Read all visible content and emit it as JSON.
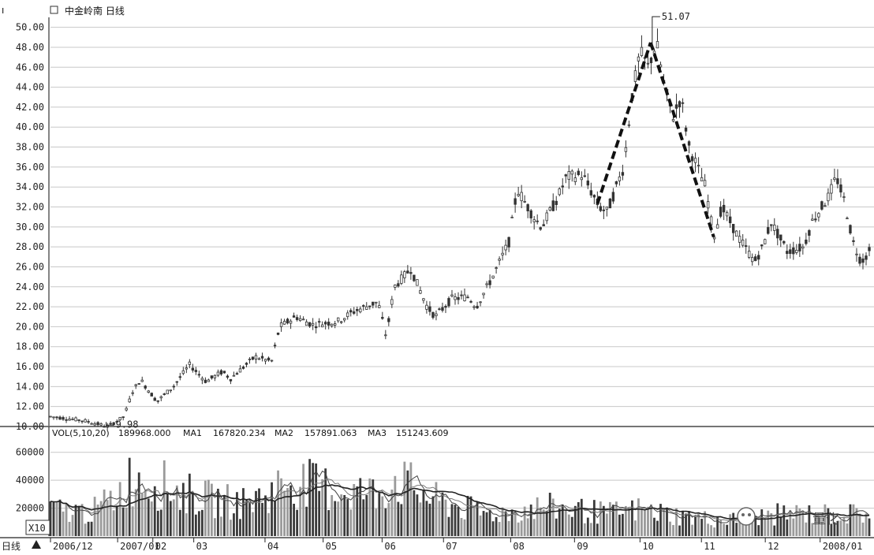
{
  "header": {
    "title": "中金岭南 日线",
    "indicator": "VOL(5,10,20)",
    "vol_value": "189968.000",
    "ma1_label": "MA1",
    "ma1_value": "167820.234",
    "ma2_label": "MA2",
    "ma2_value": "157891.063",
    "ma3_label": "MA3",
    "ma3_value": "151243.609"
  },
  "watermark": "量化",
  "zoom_label": "X10",
  "corner_label": "日线",
  "chart_data": [
    {
      "type": "candlestick",
      "title": "中金岭南 日线",
      "ylim": [
        10,
        51
      ],
      "y_ticks": [
        10,
        12,
        14,
        16,
        18,
        20,
        22,
        24,
        26,
        28,
        30,
        32,
        34,
        36,
        38,
        40,
        42,
        44,
        46,
        48,
        50
      ],
      "y_tick_labels": [
        "10.00",
        "12.00",
        "14.00",
        "16.00",
        "18.00",
        "20.00",
        "22.00",
        "24.00",
        "26.00",
        "28.00",
        "30.00",
        "32.00",
        "34.00",
        "36.00",
        "38.00",
        "40.00",
        "42.00",
        "44.00",
        "46.00",
        "48.00",
        "50.00"
      ],
      "annotations": [
        {
          "text": "51.07",
          "value": 51.07,
          "kind": "high"
        },
        {
          "text": "9.98",
          "value": 9.98,
          "kind": "low"
        }
      ],
      "price_path": [
        [
          0,
          11.0
        ],
        [
          0.04,
          10.6
        ],
        [
          0.07,
          10.0
        ],
        [
          0.09,
          11.0
        ],
        [
          0.1,
          13.5
        ],
        [
          0.11,
          14.7
        ],
        [
          0.13,
          12.5
        ],
        [
          0.15,
          14.0
        ],
        [
          0.17,
          16.2
        ],
        [
          0.19,
          14.5
        ],
        [
          0.21,
          15.5
        ],
        [
          0.22,
          14.8
        ],
        [
          0.25,
          17.0
        ],
        [
          0.27,
          16.5
        ],
        [
          0.28,
          20.0
        ],
        [
          0.3,
          21.0
        ],
        [
          0.32,
          20.2
        ],
        [
          0.35,
          20.5
        ],
        [
          0.37,
          21.5
        ],
        [
          0.4,
          22.5
        ],
        [
          0.41,
          19.0
        ],
        [
          0.42,
          24.0
        ],
        [
          0.44,
          25.8
        ],
        [
          0.46,
          22.0
        ],
        [
          0.47,
          21.0
        ],
        [
          0.49,
          22.8
        ],
        [
          0.51,
          23.0
        ],
        [
          0.52,
          22.0
        ],
        [
          0.54,
          25.0
        ],
        [
          0.56,
          28.5
        ],
        [
          0.57,
          33.8
        ],
        [
          0.59,
          31.0
        ],
        [
          0.6,
          30.0
        ],
        [
          0.62,
          33.0
        ],
        [
          0.63,
          35.0
        ],
        [
          0.65,
          35.2
        ],
        [
          0.67,
          32.0
        ],
        [
          0.68,
          31.5
        ],
        [
          0.7,
          36.0
        ],
        [
          0.71,
          43.0
        ],
        [
          0.72,
          47.5
        ],
        [
          0.73,
          46.0
        ],
        [
          0.74,
          48.5
        ],
        [
          0.75,
          44.0
        ],
        [
          0.76,
          41.0
        ],
        [
          0.77,
          43.0
        ],
        [
          0.78,
          38.0
        ],
        [
          0.8,
          34.0
        ],
        [
          0.81,
          29.0
        ],
        [
          0.82,
          32.0
        ],
        [
          0.84,
          29.0
        ],
        [
          0.86,
          26.5
        ],
        [
          0.87,
          28.0
        ],
        [
          0.88,
          30.5
        ],
        [
          0.9,
          27.5
        ],
        [
          0.92,
          28.0
        ],
        [
          0.93,
          30.5
        ],
        [
          0.95,
          33.0
        ],
        [
          0.96,
          35.0
        ],
        [
          0.97,
          32.5
        ],
        [
          0.98,
          28.5
        ],
        [
          0.99,
          26.5
        ],
        [
          1.0,
          27.5
        ]
      ]
    },
    {
      "type": "bar",
      "title": "VOL(5,10,20)",
      "ylim": [
        0,
        70000
      ],
      "y_ticks": [
        20000,
        40000,
        60000
      ],
      "y_tick_labels": [
        "20000",
        "40000",
        "60000"
      ],
      "volume_profile": [
        [
          0,
          20000
        ],
        [
          0.05,
          18000
        ],
        [
          0.08,
          30000
        ],
        [
          0.1,
          45000
        ],
        [
          0.13,
          40000
        ],
        [
          0.16,
          33000
        ],
        [
          0.2,
          27000
        ],
        [
          0.24,
          25000
        ],
        [
          0.27,
          33000
        ],
        [
          0.29,
          42000
        ],
        [
          0.32,
          38000
        ],
        [
          0.36,
          34000
        ],
        [
          0.4,
          32000
        ],
        [
          0.42,
          43000
        ],
        [
          0.44,
          37000
        ],
        [
          0.47,
          27000
        ],
        [
          0.5,
          22000
        ],
        [
          0.53,
          17000
        ],
        [
          0.56,
          18000
        ],
        [
          0.6,
          22000
        ],
        [
          0.64,
          20000
        ],
        [
          0.68,
          17000
        ],
        [
          0.72,
          20000
        ],
        [
          0.76,
          16000
        ],
        [
          0.8,
          13000
        ],
        [
          0.84,
          12000
        ],
        [
          0.88,
          16000
        ],
        [
          0.92,
          17000
        ],
        [
          0.96,
          16000
        ],
        [
          1.0,
          17000
        ]
      ],
      "ma_series": [
        {
          "name": "MA1",
          "color": "#444444"
        },
        {
          "name": "MA2",
          "color": "#7a7a7a"
        },
        {
          "name": "MA3",
          "color": "#222222"
        }
      ]
    }
  ],
  "x_axis": {
    "labels": [
      "2006/12",
      "2007/01",
      "02",
      "03",
      "04",
      "05",
      "06",
      "07",
      "08",
      "09",
      "10",
      "11",
      "12",
      "2008/01"
    ],
    "positions": [
      0.0,
      0.082,
      0.125,
      0.175,
      0.262,
      0.333,
      0.405,
      0.48,
      0.562,
      0.64,
      0.72,
      0.795,
      0.873,
      0.94
    ]
  },
  "colors": {
    "grid": "#c8c8c8",
    "trend_line": "#111111",
    "bar_dark": "#3a3a3a",
    "bar_light": "#9a9a9a"
  }
}
